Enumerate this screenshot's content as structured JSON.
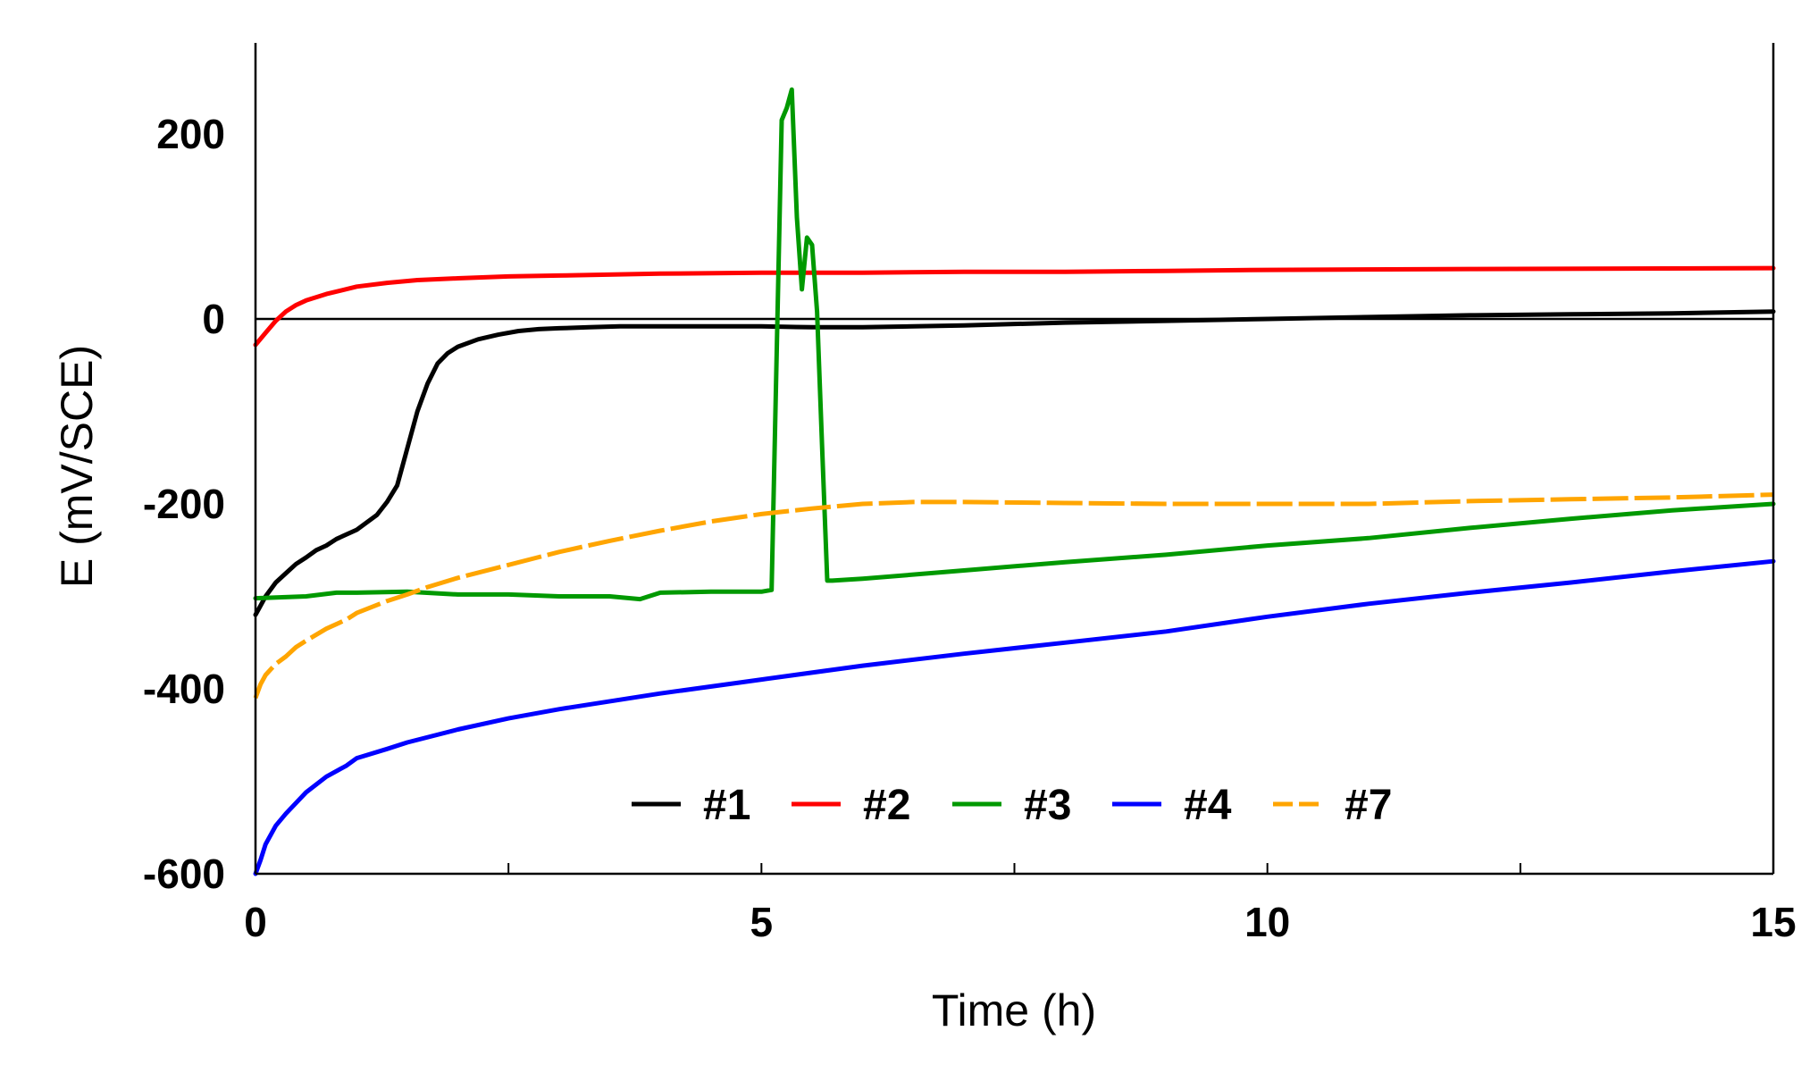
{
  "chart_data": {
    "type": "line",
    "title": "",
    "xlabel": "Time (h)",
    "ylabel": "E (mV/SCE)",
    "xlim": [
      0,
      15
    ],
    "ylim": [
      -600,
      300
    ],
    "xticks": [
      0,
      5,
      10,
      15
    ],
    "xtick_labels": [
      "0",
      "5",
      "10",
      "15"
    ],
    "xminor": [
      2.5,
      7.5,
      12.5
    ],
    "yticks": [
      -600,
      -400,
      -200,
      0,
      200
    ],
    "ytick_labels": [
      "-600",
      "-400",
      "-200",
      "0",
      "200"
    ],
    "reference_line": 0,
    "legend_position": "bottom-center",
    "series": [
      {
        "name": "#1",
        "color": "#000000",
        "dash": "solid",
        "x": [
          0,
          0.05,
          0.1,
          0.2,
          0.3,
          0.4,
          0.5,
          0.6,
          0.7,
          0.8,
          1.0,
          1.2,
          1.3,
          1.4,
          1.5,
          1.6,
          1.7,
          1.8,
          1.9,
          2.0,
          2.2,
          2.4,
          2.6,
          2.8,
          3.0,
          3.3,
          3.6,
          4.0,
          5.0,
          5.5,
          6.0,
          7.0,
          8.0,
          9.0,
          10.0,
          11.0,
          12.0,
          13.0,
          14.0,
          15.0
        ],
        "y": [
          -320,
          -310,
          -300,
          -285,
          -275,
          -265,
          -258,
          -250,
          -245,
          -238,
          -228,
          -212,
          -198,
          -180,
          -140,
          -100,
          -70,
          -48,
          -37,
          -30,
          -22,
          -17,
          -13,
          -11,
          -10,
          -9,
          -8,
          -8,
          -8,
          -9,
          -9,
          -7,
          -4,
          -2,
          0,
          2,
          4,
          5,
          6,
          8
        ]
      },
      {
        "name": "#2",
        "color": "#ff0000",
        "dash": "solid",
        "x": [
          0,
          0.1,
          0.2,
          0.3,
          0.4,
          0.5,
          0.7,
          1.0,
          1.3,
          1.6,
          2.0,
          2.5,
          3.0,
          4.0,
          5.0,
          6.0,
          7.0,
          8.0,
          9.0,
          10.0,
          12.0,
          15.0
        ],
        "y": [
          -28,
          -15,
          -2,
          8,
          15,
          20,
          27,
          35,
          39,
          42,
          44,
          46,
          47,
          49,
          50,
          50,
          51,
          51,
          52,
          53,
          54,
          55
        ]
      },
      {
        "name": "#3",
        "color": "#009900",
        "dash": "solid",
        "x": [
          0,
          0.5,
          0.8,
          1.0,
          1.5,
          2.0,
          2.5,
          3.0,
          3.5,
          3.8,
          4.0,
          4.5,
          5.0,
          5.1,
          5.2,
          5.25,
          5.3,
          5.35,
          5.4,
          5.45,
          5.5,
          5.55,
          5.6,
          5.65,
          5.7,
          6.0,
          7.0,
          8.0,
          9.0,
          10.0,
          11.0,
          12.0,
          13.0,
          14.0,
          15.0
        ],
        "y": [
          -302,
          -300,
          -296,
          -296,
          -295,
          -298,
          -298,
          -300,
          -300,
          -303,
          -296,
          -295,
          -295,
          -293,
          215,
          228,
          248,
          110,
          32,
          88,
          80,
          8,
          -140,
          -283,
          -283,
          -281,
          -272,
          -263,
          -255,
          -245,
          -237,
          -226,
          -216,
          -207,
          -200
        ]
      },
      {
        "name": "#4",
        "color": "#0000ff",
        "dash": "solid",
        "x": [
          0,
          0.05,
          0.1,
          0.2,
          0.3,
          0.5,
          0.7,
          0.9,
          1.0,
          1.3,
          1.5,
          2.0,
          2.5,
          3.0,
          4.0,
          5.0,
          6.0,
          7.0,
          8.0,
          9.0,
          10.0,
          11.0,
          12.0,
          13.0,
          14.0,
          15.0
        ],
        "y": [
          -600,
          -585,
          -568,
          -548,
          -535,
          -512,
          -495,
          -483,
          -475,
          -465,
          -458,
          -444,
          -432,
          -422,
          -405,
          -390,
          -375,
          -362,
          -350,
          -338,
          -322,
          -308,
          -296,
          -285,
          -273,
          -262
        ]
      },
      {
        "name": "#7",
        "color": "#ffa500",
        "dash": "dash",
        "x": [
          0,
          0.05,
          0.1,
          0.2,
          0.3,
          0.4,
          0.5,
          0.7,
          0.9,
          1.0,
          1.3,
          1.5,
          1.7,
          2.0,
          2.5,
          3.0,
          3.5,
          4.0,
          4.5,
          5.0,
          5.5,
          6.0,
          6.5,
          7.0,
          8.0,
          9.0,
          10.0,
          11.0,
          12.0,
          13.0,
          14.0,
          15.0
        ],
        "y": [
          -410,
          -395,
          -385,
          -373,
          -365,
          -355,
          -348,
          -335,
          -325,
          -318,
          -305,
          -298,
          -290,
          -280,
          -266,
          -252,
          -240,
          -229,
          -219,
          -211,
          -205,
          -200,
          -198,
          -198,
          -199,
          -200,
          -200,
          -200,
          -197,
          -195,
          -193,
          -190
        ]
      }
    ]
  }
}
